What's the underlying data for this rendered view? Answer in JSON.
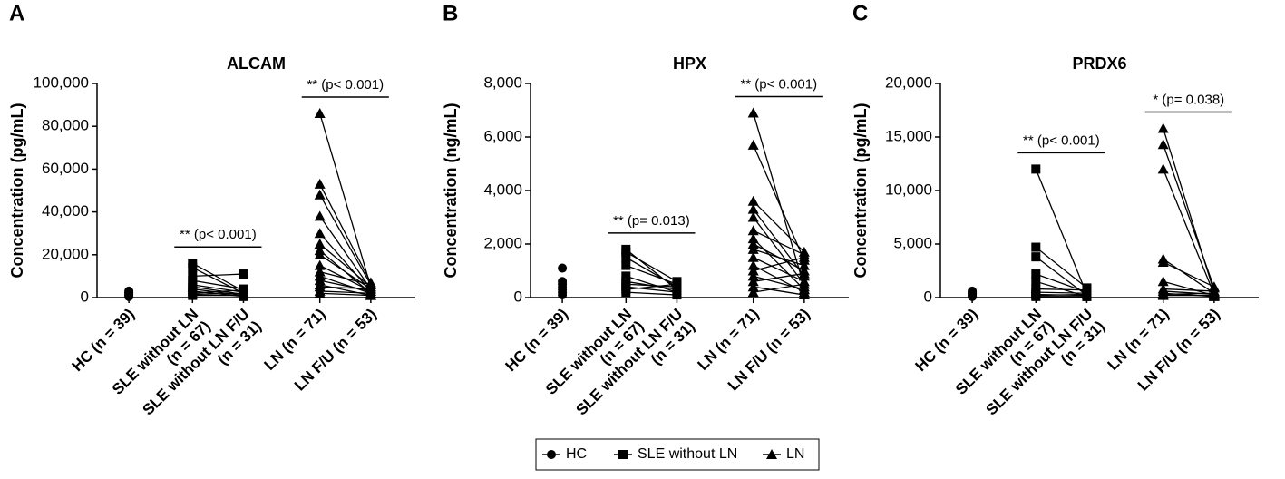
{
  "legend": [
    {
      "name": "HC",
      "marker": "circle"
    },
    {
      "name": "SLE without LN",
      "marker": "square"
    },
    {
      "name": "LN",
      "marker": "triangle"
    }
  ],
  "chart_data": [
    {
      "type": "paired-dot",
      "panel": "A",
      "title": "ALCAM",
      "y_label": "Concentration (pg/mL)",
      "categories": [
        [
          "HC (n = 39)"
        ],
        [
          "SLE without LN",
          "(n = 67)"
        ],
        [
          "SLE without LN F/U",
          "(n = 31)"
        ],
        [
          "LN (n = 71)"
        ],
        [
          "LN F/U (n = 53)"
        ]
      ],
      "markers": [
        "circle",
        "square",
        "square",
        "triangle",
        "triangle"
      ],
      "pairs": [
        [
          1,
          2
        ],
        [
          3,
          4
        ]
      ],
      "values": [
        [
          1000,
          2000,
          3000,
          1500,
          500,
          2500
        ],
        [
          16000,
          14000,
          10000,
          8000,
          6000,
          5000,
          4000,
          3000,
          2000,
          1500,
          1000
        ],
        [
          3000,
          2000,
          11000,
          4000,
          2500,
          1500,
          1000,
          500,
          3500,
          2000,
          1000
        ],
        [
          86000,
          53000,
          48000,
          38000,
          30000,
          25000,
          22000,
          20000,
          15000,
          12000,
          10000,
          8000,
          6000,
          5000,
          3000,
          2000
        ],
        [
          5000,
          7000,
          6000,
          4000,
          3000,
          5000,
          2000,
          4000,
          3000,
          6000,
          2000,
          3000,
          1000,
          4000,
          2000,
          1000
        ]
      ],
      "annotations": [
        {
          "text": "** (p< 0.001)",
          "from": 1,
          "to": 2
        },
        {
          "text": "** (p< 0.001)",
          "from": 3,
          "to": 4
        }
      ],
      "ylim": [
        0,
        100000
      ],
      "yticks": [
        0,
        {
          "value": 20000,
          "label": "20,000"
        },
        {
          "value": 40000,
          "label": "40,000"
        },
        {
          "value": 60000,
          "label": "60,000"
        },
        {
          "value": 80000,
          "label": "80,000"
        },
        {
          "value": 100000,
          "label": "100,000"
        }
      ]
    },
    {
      "type": "paired-dot",
      "panel": "B",
      "title": "HPX",
      "y_label": "Concentration (ng/mL)",
      "categories": [
        [
          "HC (n = 39)"
        ],
        [
          "SLE without LN",
          "(n = 67)"
        ],
        [
          "SLE without LN F/U",
          "(n = 31)"
        ],
        [
          "LN (n = 71)"
        ],
        [
          "LN F/U (n = 53)"
        ]
      ],
      "markers": [
        "circle",
        "square",
        "square",
        "triangle",
        "triangle"
      ],
      "pairs": [
        [
          1,
          2
        ],
        [
          3,
          4
        ]
      ],
      "values": [
        [
          1100,
          600,
          400,
          300,
          200,
          100,
          500
        ],
        [
          1800,
          1700,
          1500,
          1200,
          800,
          600,
          500,
          400,
          300,
          200
        ],
        [
          300,
          600,
          400,
          500,
          200,
          300,
          400,
          200,
          500,
          100
        ],
        [
          6900,
          5700,
          3600,
          3300,
          3000,
          2500,
          2200,
          2000,
          1800,
          1500,
          1200,
          1000,
          800,
          600,
          400,
          200
        ],
        [
          400,
          1400,
          1700,
          800,
          500,
          1600,
          300,
          1000,
          1200,
          600,
          200,
          1500,
          300,
          900,
          100,
          500
        ]
      ],
      "annotations": [
        {
          "text": "** (p= 0.013)",
          "from": 1,
          "to": 2
        },
        {
          "text": "** (p< 0.001)",
          "from": 3,
          "to": 4
        }
      ],
      "ylim": [
        0,
        8000
      ],
      "yticks": [
        0,
        {
          "value": 2000,
          "label": "2,000"
        },
        {
          "value": 4000,
          "label": "4,000"
        },
        {
          "value": 6000,
          "label": "6,000"
        },
        {
          "value": 8000,
          "label": "8,000"
        }
      ]
    },
    {
      "type": "paired-dot",
      "panel": "C",
      "title": "PRDX6",
      "y_label": "Concentration (pg/mL)",
      "categories": [
        [
          "HC (n = 39)"
        ],
        [
          "SLE without LN",
          "(n = 67)"
        ],
        [
          "SLE without LN F/U",
          "(n = 31)"
        ],
        [
          "LN (n = 71)"
        ],
        [
          "LN F/U (n = 53)"
        ]
      ],
      "markers": [
        "circle",
        "square",
        "square",
        "triangle",
        "triangle"
      ],
      "pairs": [
        [
          1,
          2
        ],
        [
          3,
          4
        ]
      ],
      "values": [
        [
          600,
          400,
          300,
          200,
          100,
          500
        ],
        [
          12000,
          4700,
          3800,
          2200,
          1500,
          800,
          500,
          300,
          200,
          100
        ],
        [
          300,
          900,
          200,
          500,
          100,
          700,
          400,
          200,
          300,
          100
        ],
        [
          15800,
          14300,
          12000,
          3600,
          3300,
          1500,
          800,
          600,
          400,
          300,
          200
        ],
        [
          500,
          900,
          300,
          400,
          1000,
          200,
          600,
          300,
          100,
          400,
          200
        ]
      ],
      "annotations": [
        {
          "text": "** (p< 0.001)",
          "from": 1,
          "to": 2
        },
        {
          "text": "* (p= 0.038)",
          "from": 3,
          "to": 4
        }
      ],
      "ylim": [
        0,
        20000
      ],
      "yticks": [
        0,
        {
          "value": 5000,
          "label": "5,000"
        },
        {
          "value": 10000,
          "label": "10,000"
        },
        {
          "value": 15000,
          "label": "15,000"
        },
        {
          "value": 20000,
          "label": "20,000"
        }
      ]
    }
  ]
}
